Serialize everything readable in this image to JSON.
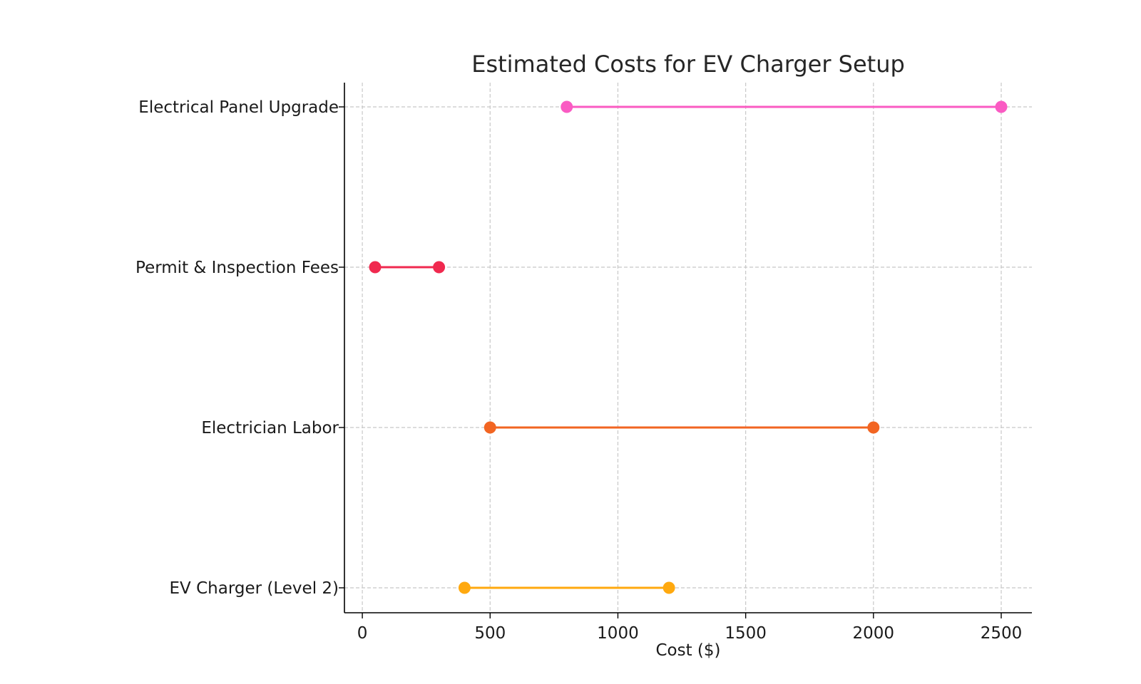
{
  "chart_data": {
    "type": "dumbbell",
    "title": "Estimated Costs for EV Charger Setup",
    "xlabel": "Cost ($)",
    "ylabel": "",
    "xlim": [
      -70,
      2620
    ],
    "xticks": [
      0,
      500,
      1000,
      1500,
      2000,
      2500
    ],
    "grid": true,
    "categories": [
      "EV Charger (Level 2)",
      "Electrician Labor",
      "Permit & Inspection Fees",
      "Electrical Panel Upgrade"
    ],
    "ranges": [
      {
        "category": "EV Charger (Level 2)",
        "min": 400,
        "max": 1200,
        "color": "#FFA90F"
      },
      {
        "category": "Electrician Labor",
        "min": 500,
        "max": 2000,
        "color": "#F26522"
      },
      {
        "category": "Permit & Inspection Fees",
        "min": 50,
        "max": 300,
        "color": "#F0294F"
      },
      {
        "category": "Electrical Panel Upgrade",
        "min": 800,
        "max": 2500,
        "color": "#FA5BC3"
      }
    ]
  }
}
